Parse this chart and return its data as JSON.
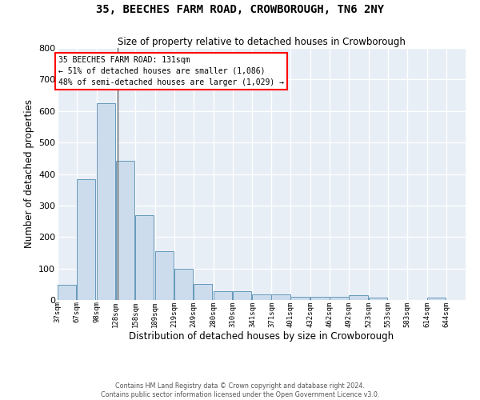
{
  "title": "35, BEECHES FARM ROAD, CROWBOROUGH, TN6 2NY",
  "subtitle": "Size of property relative to detached houses in Crowborough",
  "xlabel": "Distribution of detached houses by size in Crowborough",
  "ylabel": "Number of detached properties",
  "bin_labels": [
    "37sqm",
    "67sqm",
    "98sqm",
    "128sqm",
    "158sqm",
    "189sqm",
    "219sqm",
    "249sqm",
    "280sqm",
    "310sqm",
    "341sqm",
    "371sqm",
    "401sqm",
    "432sqm",
    "462sqm",
    "492sqm",
    "523sqm",
    "553sqm",
    "583sqm",
    "614sqm",
    "644sqm"
  ],
  "bin_edges": [
    37,
    67,
    98,
    128,
    158,
    189,
    219,
    249,
    280,
    310,
    341,
    371,
    401,
    432,
    462,
    492,
    523,
    553,
    583,
    614,
    644
  ],
  "bar_heights": [
    47,
    383,
    624,
    442,
    268,
    155,
    98,
    52,
    28,
    28,
    17,
    17,
    11,
    11,
    11,
    14,
    8,
    0,
    0,
    8,
    0
  ],
  "bar_color": "#ccdcec",
  "bar_edge_color": "#6699bb",
  "property_size": 131,
  "property_label": "35 BEECHES FARM ROAD: 131sqm",
  "annotation_line1": "← 51% of detached houses are smaller (1,086)",
  "annotation_line2": "48% of semi-detached houses are larger (1,029) →",
  "vline_color": "#666666",
  "ylim": [
    0,
    800
  ],
  "yticks": [
    0,
    100,
    200,
    300,
    400,
    500,
    600,
    700,
    800
  ],
  "bg_color": "#e8eef6",
  "grid_color": "#ffffff",
  "fig_bg_color": "#ffffff",
  "footer_line1": "Contains HM Land Registry data © Crown copyright and database right 2024.",
  "footer_line2": "Contains public sector information licensed under the Open Government Licence v3.0."
}
